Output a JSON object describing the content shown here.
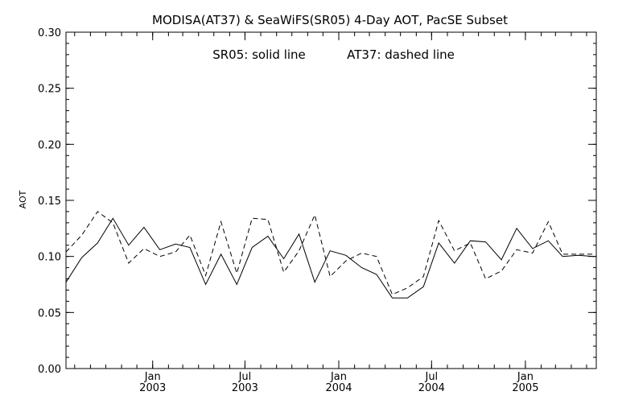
{
  "chart_data": {
    "type": "line",
    "title": "MODISA(AT37) & SeaWiFS(SR05) 4-Day AOT, PacSE Subset",
    "annotations": [
      "SR05: solid line",
      "AT37: dashed line"
    ],
    "xlabel": "",
    "ylabel": "AOT",
    "ylim": [
      0.0,
      0.3
    ],
    "yticks": [
      0.0,
      0.05,
      0.1,
      0.15,
      0.2,
      0.25,
      0.3
    ],
    "ytick_labels": [
      "0.00",
      "0.05",
      "0.10",
      "0.15",
      "0.20",
      "0.25",
      "0.30"
    ],
    "xlim": [
      "2002-07-15",
      "2005-05-20"
    ],
    "xticks": [
      {
        "date": "2003-01-01",
        "line1": "Jan",
        "line2": "2003"
      },
      {
        "date": "2003-07-01",
        "line1": "Jul",
        "line2": "2003"
      },
      {
        "date": "2004-01-01",
        "line1": "Jan",
        "line2": "2004"
      },
      {
        "date": "2004-07-01",
        "line1": "Jul",
        "line2": "2004"
      },
      {
        "date": "2005-01-01",
        "line1": "Jan",
        "line2": "2005"
      }
    ],
    "grid": false,
    "legend": "none",
    "x": [
      "2002-07-15",
      "2002-08-15",
      "2002-09-15",
      "2002-10-15",
      "2002-11-15",
      "2002-12-15",
      "2003-01-15",
      "2003-02-15",
      "2003-03-15",
      "2003-04-15",
      "2003-05-15",
      "2003-06-15",
      "2003-07-15",
      "2003-08-15",
      "2003-09-15",
      "2003-10-15",
      "2003-11-15",
      "2003-12-15",
      "2004-01-15",
      "2004-02-15",
      "2004-03-15",
      "2004-04-15",
      "2004-05-15",
      "2004-06-15",
      "2004-07-15",
      "2004-08-15",
      "2004-09-15",
      "2004-10-15",
      "2004-11-15",
      "2004-12-15",
      "2005-01-15",
      "2005-02-15",
      "2005-03-15",
      "2005-04-15",
      "2005-05-15"
    ],
    "series": [
      {
        "name": "SR05",
        "style": "solid",
        "values": [
          0.077,
          0.099,
          0.112,
          0.134,
          0.11,
          0.126,
          0.106,
          0.111,
          0.108,
          0.075,
          0.102,
          0.075,
          0.108,
          0.118,
          0.098,
          0.12,
          0.077,
          0.105,
          0.101,
          0.09,
          0.084,
          0.063,
          0.063,
          0.073,
          0.112,
          0.094,
          0.114,
          0.113,
          0.097,
          0.125,
          0.107,
          0.114,
          0.1,
          0.101,
          0.1
        ]
      },
      {
        "name": "AT37",
        "style": "dashed",
        "values": [
          0.104,
          0.119,
          0.14,
          0.13,
          0.094,
          0.107,
          0.1,
          0.104,
          0.119,
          0.083,
          0.131,
          0.085,
          0.134,
          0.133,
          0.086,
          0.105,
          0.137,
          0.082,
          0.096,
          0.103,
          0.1,
          0.066,
          0.072,
          0.082,
          0.132,
          0.105,
          0.112,
          0.08,
          0.087,
          0.106,
          0.103,
          0.131,
          0.102,
          0.102,
          0.102
        ]
      }
    ]
  }
}
